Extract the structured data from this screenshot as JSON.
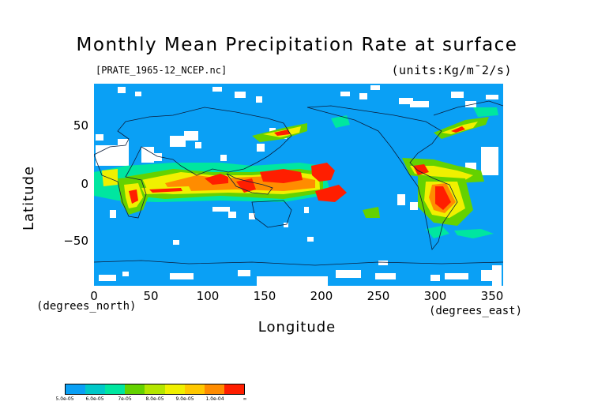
{
  "title": "Monthly Mean Precipitation Rate at surface",
  "filename": "[PRATE_1965-12_NCEP.nc]",
  "units": "(units:Kg/m¯2/s)",
  "x_axis": {
    "label": "Longitude",
    "unit_note": "(degrees_east)",
    "ticks": [
      "0",
      "50",
      "100",
      "150",
      "200",
      "250",
      "300",
      "350"
    ]
  },
  "y_axis": {
    "label": "Latitude",
    "unit_note": "(degrees_north)",
    "ticks": [
      "50",
      "0",
      "−50"
    ]
  },
  "colorbar": {
    "colors": [
      "#0aa0f5",
      "#00c8c8",
      "#00e6a0",
      "#64d200",
      "#b4e600",
      "#f0f000",
      "#ffc800",
      "#ff8c00",
      "#ff1e00"
    ],
    "labels": [
      "5.0e-05",
      "6.0e-05",
      "7e-05",
      "8.0e-05",
      "9.0e-05",
      "1.0e-04",
      "∞"
    ]
  },
  "map_colors": {
    "ocean_base": "#0aa0f5",
    "missing": "#ffffff",
    "coast": "#0c1e3c",
    "red": "#ff1e00",
    "orange": "#ff8c00",
    "yellow": "#f0f000",
    "green": "#64d200",
    "cyan": "#00e6a0"
  }
}
